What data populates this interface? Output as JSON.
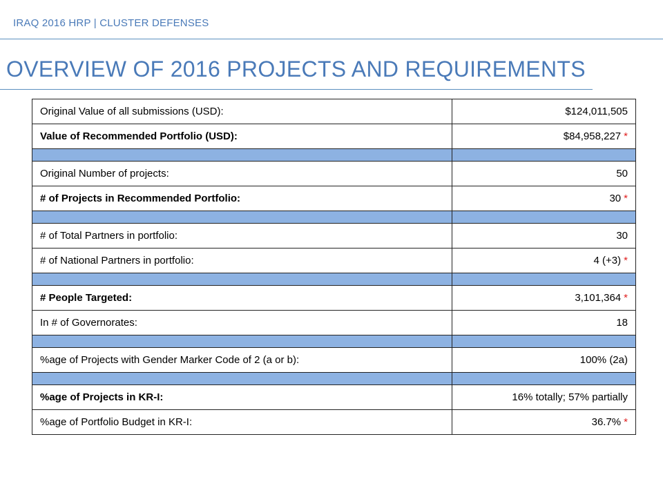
{
  "header": {
    "label": "IRAQ 2016 HRP | CLUSTER DEFENSES"
  },
  "page": {
    "title": "OVERVIEW OF 2016 PROJECTS AND REQUIREMENTS"
  },
  "colors": {
    "accent": "#4a7ab8",
    "spacer_row": "#8db2e2",
    "asterisk": "#e02020"
  },
  "table": {
    "rows": [
      {
        "label": "Original Value of all submissions (USD):",
        "value": "$124,011,505",
        "asterisk": ""
      },
      {
        "label": "Value of Recommended Portfolio (USD):",
        "value": "$84,958,227",
        "asterisk": "*"
      },
      {
        "label": "Original Number of projects:",
        "value": "50",
        "asterisk": ""
      },
      {
        "label": "# of Projects in Recommended Portfolio:",
        "value": "30",
        "asterisk": "*"
      },
      {
        "label": "# of Total Partners in portfolio:",
        "value": "30",
        "asterisk": ""
      },
      {
        "label": "# of National Partners in portfolio:",
        "value": "4 (+3)",
        "asterisk": "*"
      },
      {
        "label": "# People Targeted:",
        "value": "3,101,364",
        "asterisk": "*"
      },
      {
        "label": "In # of Governorates:",
        "value": "18",
        "asterisk": ""
      },
      {
        "label": "%age of Projects with Gender Marker Code of 2 (a or b):",
        "value": "100% (2a)",
        "asterisk": ""
      },
      {
        "label": "%age of Projects in KR-I:",
        "value": "16% totally; 57% partially",
        "asterisk": ""
      },
      {
        "label": "%age of Portfolio Budget in KR-I:",
        "value": "36.7%",
        "asterisk": "*"
      }
    ]
  }
}
